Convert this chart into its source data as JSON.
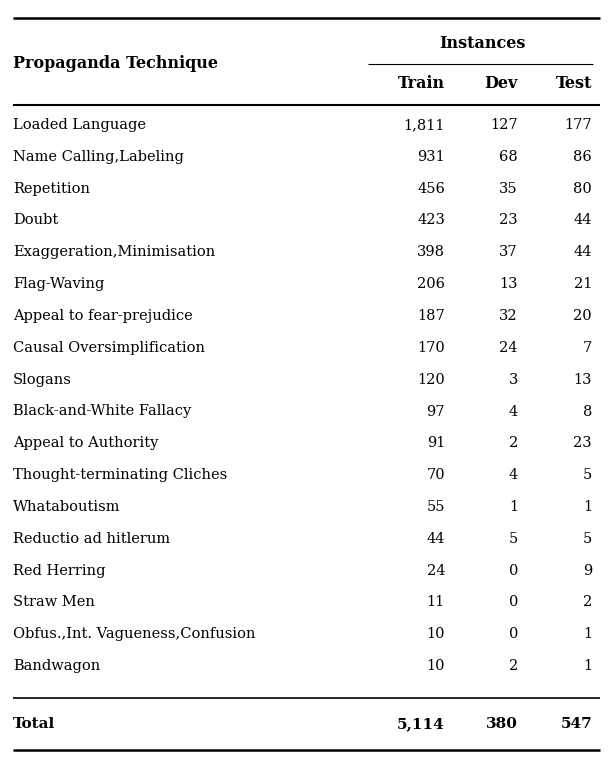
{
  "col_header_group": "Instances",
  "col_headers": [
    "Propaganda Technique",
    "Train",
    "Dev",
    "Test"
  ],
  "rows": [
    [
      "Loaded Language",
      "1,811",
      "127",
      "177"
    ],
    [
      "Name Calling,Labeling",
      "931",
      "68",
      "86"
    ],
    [
      "Repetition",
      "456",
      "35",
      "80"
    ],
    [
      "Doubt",
      "423",
      "23",
      "44"
    ],
    [
      "Exaggeration,Minimisation",
      "398",
      "37",
      "44"
    ],
    [
      "Flag-Waving",
      "206",
      "13",
      "21"
    ],
    [
      "Appeal to fear-prejudice",
      "187",
      "32",
      "20"
    ],
    [
      "Causal Oversimplification",
      "170",
      "24",
      "7"
    ],
    [
      "Slogans",
      "120",
      "3",
      "13"
    ],
    [
      "Black-and-White Fallacy",
      "97",
      "4",
      "8"
    ],
    [
      "Appeal to Authority",
      "91",
      "2",
      "23"
    ],
    [
      "Thought-terminating Cliches",
      "70",
      "4",
      "5"
    ],
    [
      "Whataboutism",
      "55",
      "1",
      "1"
    ],
    [
      "Reductio ad hitlerum",
      "44",
      "5",
      "5"
    ],
    [
      "Red Herring",
      "24",
      "0",
      "9"
    ],
    [
      "Straw Men",
      "11",
      "0",
      "2"
    ],
    [
      "Obfus.,Int. Vagueness,Confusion",
      "10",
      "0",
      "1"
    ],
    [
      "Bandwagon",
      "10",
      "2",
      "1"
    ]
  ],
  "total_row": [
    "Total",
    "5,114",
    "380",
    "547"
  ],
  "background_color": "#ffffff",
  "text_color": "#000000",
  "font_size": 10.5,
  "header_font_size": 11.5
}
